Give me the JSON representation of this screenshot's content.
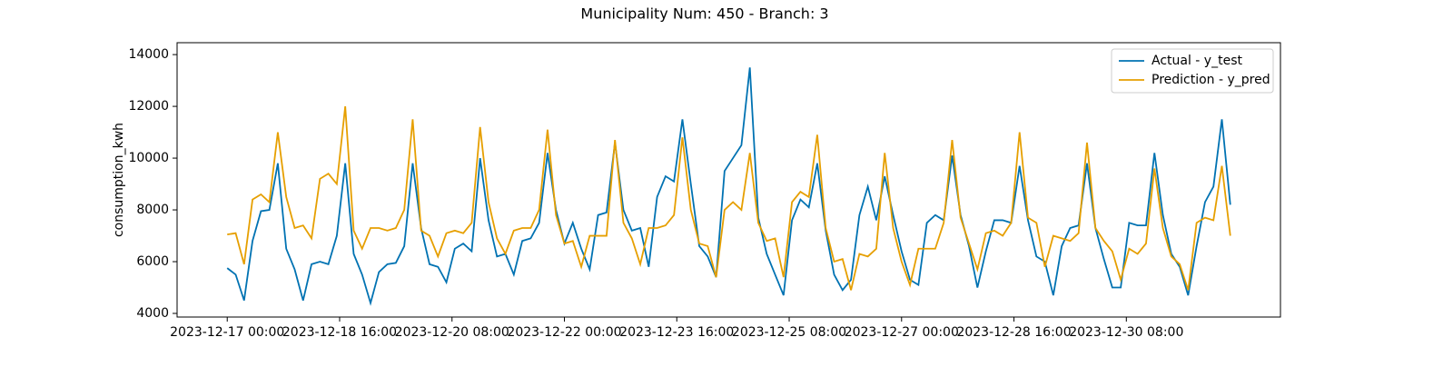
{
  "chart_data": {
    "type": "line",
    "title": "Municipality Num: 450 - Branch: 3",
    "y_label": "consumption_kwh",
    "x": [
      "2023-12-17 00:00",
      "2023-12-17 03:00",
      "2023-12-17 06:00",
      "2023-12-17 09:00",
      "2023-12-17 12:00",
      "2023-12-17 15:00",
      "2023-12-17 18:00",
      "2023-12-17 21:00",
      "2023-12-18 00:00",
      "2023-12-18 03:00",
      "2023-12-18 06:00",
      "2023-12-18 09:00",
      "2023-12-18 12:00",
      "2023-12-18 15:00",
      "2023-12-18 18:00",
      "2023-12-18 21:00",
      "2023-12-19 00:00",
      "2023-12-19 03:00",
      "2023-12-19 06:00",
      "2023-12-19 09:00",
      "2023-12-19 12:00",
      "2023-12-19 15:00",
      "2023-12-19 18:00",
      "2023-12-19 21:00",
      "2023-12-20 00:00",
      "2023-12-20 03:00",
      "2023-12-20 06:00",
      "2023-12-20 09:00",
      "2023-12-20 12:00",
      "2023-12-20 15:00",
      "2023-12-20 18:00",
      "2023-12-20 21:00",
      "2023-12-21 00:00",
      "2023-12-21 03:00",
      "2023-12-21 06:00",
      "2023-12-21 09:00",
      "2023-12-21 12:00",
      "2023-12-21 15:00",
      "2023-12-21 18:00",
      "2023-12-21 21:00",
      "2023-12-22 00:00",
      "2023-12-22 03:00",
      "2023-12-22 06:00",
      "2023-12-22 09:00",
      "2023-12-22 12:00",
      "2023-12-22 15:00",
      "2023-12-22 18:00",
      "2023-12-22 21:00",
      "2023-12-23 00:00",
      "2023-12-23 03:00",
      "2023-12-23 06:00",
      "2023-12-23 09:00",
      "2023-12-23 12:00",
      "2023-12-23 15:00",
      "2023-12-23 18:00",
      "2023-12-23 21:00",
      "2023-12-24 00:00",
      "2023-12-24 03:00",
      "2023-12-24 06:00",
      "2023-12-24 09:00",
      "2023-12-24 12:00",
      "2023-12-24 15:00",
      "2023-12-24 18:00",
      "2023-12-24 21:00",
      "2023-12-25 00:00",
      "2023-12-25 03:00",
      "2023-12-25 06:00",
      "2023-12-25 09:00",
      "2023-12-25 12:00",
      "2023-12-25 15:00",
      "2023-12-25 18:00",
      "2023-12-25 21:00",
      "2023-12-26 00:00",
      "2023-12-26 03:00",
      "2023-12-26 06:00",
      "2023-12-26 09:00",
      "2023-12-26 12:00",
      "2023-12-26 15:00",
      "2023-12-26 18:00",
      "2023-12-26 21:00",
      "2023-12-27 00:00",
      "2023-12-27 03:00",
      "2023-12-27 06:00",
      "2023-12-27 09:00",
      "2023-12-27 12:00",
      "2023-12-27 15:00",
      "2023-12-27 18:00",
      "2023-12-27 21:00",
      "2023-12-28 00:00",
      "2023-12-28 03:00",
      "2023-12-28 06:00",
      "2023-12-28 09:00",
      "2023-12-28 12:00",
      "2023-12-28 15:00",
      "2023-12-28 18:00",
      "2023-12-28 21:00",
      "2023-12-29 00:00",
      "2023-12-29 03:00",
      "2023-12-29 06:00",
      "2023-12-29 09:00",
      "2023-12-29 12:00",
      "2023-12-29 15:00",
      "2023-12-29 18:00",
      "2023-12-29 21:00",
      "2023-12-30 00:00",
      "2023-12-30 03:00",
      "2023-12-30 06:00",
      "2023-12-30 09:00",
      "2023-12-30 12:00",
      "2023-12-30 15:00",
      "2023-12-30 18:00",
      "2023-12-30 21:00",
      "2023-12-31 00:00",
      "2023-12-31 03:00",
      "2023-12-31 06:00",
      "2023-12-31 09:00",
      "2023-12-31 12:00",
      "2023-12-31 15:00",
      "2023-12-31 18:00",
      "2023-12-31 21:00"
    ],
    "series": [
      {
        "name": "Actual - y_test",
        "color": "#0072b2",
        "values": [
          5750,
          5500,
          4500,
          6800,
          7950,
          8000,
          9800,
          6500,
          5700,
          4500,
          5900,
          6000,
          5900,
          7000,
          9800,
          6300,
          5500,
          4400,
          5600,
          5900,
          5950,
          6600,
          9800,
          7300,
          5900,
          5800,
          5200,
          6500,
          6700,
          6400,
          10000,
          7600,
          6200,
          6300,
          5500,
          6800,
          6900,
          7500,
          10200,
          8000,
          6700,
          7500,
          6500,
          5700,
          7800,
          7900,
          10600,
          8000,
          7200,
          7300,
          5800,
          8500,
          9300,
          9100,
          11500,
          9000,
          6600,
          6200,
          5400,
          9500,
          10000,
          10500,
          13500,
          7700,
          6300,
          5500,
          4700,
          7600,
          8400,
          8100,
          9800,
          7200,
          5500,
          4900,
          5300,
          7800,
          8900,
          7600,
          9300,
          7800,
          6400,
          5300,
          5100,
          7500,
          7800,
          7600,
          10100,
          7800,
          6600,
          5000,
          6400,
          7600,
          7600,
          7500,
          9700,
          7600,
          6200,
          6000,
          4700,
          6600,
          7300,
          7400,
          9800,
          7300,
          6100,
          5000,
          5000,
          7500,
          7400,
          7400,
          10200,
          7800,
          6300,
          5800,
          4700,
          6600,
          8300,
          8900,
          11500,
          8200
        ]
      },
      {
        "name": "Prediction - y_pred",
        "color": "#e69f00",
        "values": [
          7050,
          7100,
          5900,
          8400,
          8600,
          8300,
          11000,
          8500,
          7300,
          7400,
          6900,
          9200,
          9400,
          9000,
          12000,
          7200,
          6500,
          7300,
          7300,
          7200,
          7300,
          8000,
          11500,
          7200,
          7000,
          6200,
          7100,
          7200,
          7100,
          7500,
          11200,
          8300,
          6900,
          6300,
          7200,
          7300,
          7300,
          8000,
          11100,
          7800,
          6700,
          6800,
          5800,
          7000,
          7000,
          7000,
          10700,
          7500,
          6900,
          5900,
          7300,
          7300,
          7400,
          7800,
          10800,
          8000,
          6700,
          6600,
          5400,
          8000,
          8300,
          8000,
          10200,
          7500,
          6800,
          6900,
          5400,
          8300,
          8700,
          8500,
          10900,
          7300,
          6000,
          6100,
          4900,
          6300,
          6200,
          6500,
          10200,
          7300,
          6000,
          5100,
          6500,
          6500,
          6500,
          7500,
          10700,
          7700,
          6700,
          5700,
          7100,
          7200,
          7000,
          7500,
          11000,
          7700,
          7500,
          5800,
          7000,
          6900,
          6800,
          7100,
          10600,
          7300,
          6800,
          6400,
          5300,
          6500,
          6300,
          6700,
          9600,
          7300,
          6200,
          5900,
          4900,
          7500,
          7700,
          7600,
          9700,
          7000
        ]
      }
    ],
    "ylim": [
      3860,
      14460
    ],
    "yticks": [
      4000,
      6000,
      8000,
      10000,
      12000,
      14000
    ],
    "xticks": [
      "2023-12-17 00:00",
      "2023-12-18 16:00",
      "2023-12-20 08:00",
      "2023-12-22 00:00",
      "2023-12-23 16:00",
      "2023-12-25 08:00",
      "2023-12-27 00:00",
      "2023-12-28 16:00",
      "2023-12-30 08:00"
    ],
    "legend": "upper right",
    "grid": false
  }
}
